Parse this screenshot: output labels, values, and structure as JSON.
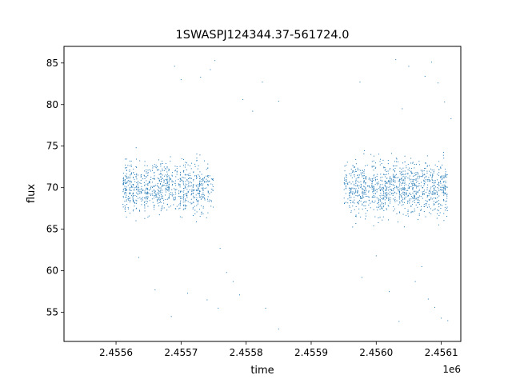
{
  "chart_data": {
    "type": "scatter",
    "title": "1SWASPJ124344.37-561724.0",
    "xlabel": "time",
    "ylabel": "flux",
    "x_offset_label": "1e6",
    "xlim": [
      2.45552,
      2.45613
    ],
    "ylim": [
      51.5,
      87
    ],
    "x_ticks": [
      2.4556,
      2.4557,
      2.4558,
      2.4559,
      2.456,
      2.4561
    ],
    "x_tick_labels": [
      "2.4556",
      "2.4557",
      "2.4558",
      "2.4559",
      "2.4560",
      "2.4561"
    ],
    "y_ticks": [
      55,
      60,
      65,
      70,
      75,
      80,
      85
    ],
    "y_tick_labels": [
      "55",
      "60",
      "65",
      "70",
      "75",
      "80",
      "85"
    ],
    "grid": false,
    "series": [
      {
        "color": "#1f77b4",
        "segments": [
          {
            "x_range": [
              2.45561,
              2.45575
            ],
            "flux_center": 70,
            "flux_spread": [
              64.5,
              75.5
            ]
          },
          {
            "x_range": [
              2.45595,
              2.45611
            ],
            "flux_center": 70,
            "flux_spread": [
              64,
              76
            ]
          }
        ],
        "outliers": [
          [
            2.455635,
            61.6
          ],
          [
            2.45566,
            57.7
          ],
          [
            2.455685,
            54.5
          ],
          [
            2.45569,
            84.6
          ],
          [
            2.4557,
            83.0
          ],
          [
            2.45571,
            57.3
          ],
          [
            2.45573,
            83.3
          ],
          [
            2.45574,
            56.5
          ],
          [
            2.455745,
            84.2
          ],
          [
            2.455752,
            85.3
          ],
          [
            2.455757,
            55.5
          ],
          [
            2.45576,
            62.7
          ],
          [
            2.45578,
            58.7
          ],
          [
            2.45579,
            57.1
          ],
          [
            2.455795,
            80.6
          ],
          [
            2.455825,
            82.7
          ],
          [
            2.45585,
            53.0
          ],
          [
            2.45583,
            55.5
          ],
          [
            2.45581,
            79.2
          ],
          [
            2.45577,
            59.8
          ],
          [
            2.45585,
            80.4
          ],
          [
            2.455975,
            82.7
          ],
          [
            2.455978,
            59.2
          ],
          [
            2.45603,
            85.4
          ],
          [
            2.456035,
            53.9
          ],
          [
            2.45605,
            84.6
          ],
          [
            2.45606,
            58.7
          ],
          [
            2.45607,
            60.5
          ],
          [
            2.456075,
            83.4
          ],
          [
            2.45608,
            56.6
          ],
          [
            2.456085,
            85.1
          ],
          [
            2.45609,
            55.6
          ],
          [
            2.456095,
            82.6
          ],
          [
            2.4561,
            54.3
          ],
          [
            2.456105,
            80.3
          ],
          [
            2.45611,
            54.0
          ],
          [
            2.45604,
            79.5
          ],
          [
            2.45602,
            57.5
          ],
          [
            2.456,
            61.8
          ],
          [
            2.456115,
            78.3
          ]
        ]
      }
    ]
  }
}
